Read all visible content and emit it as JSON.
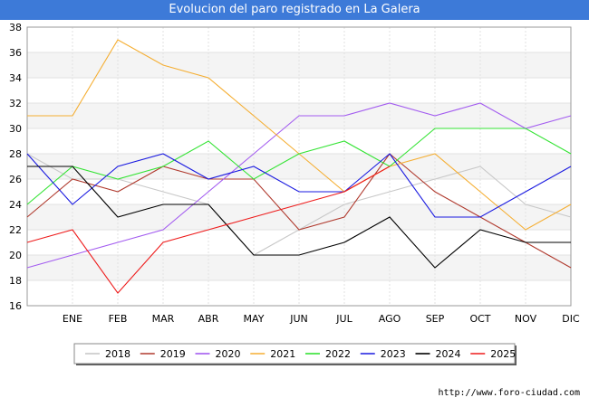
{
  "chart_data": {
    "type": "line",
    "title": "Evolucion del paro registrado en La Galera",
    "categories": [
      "",
      "ENE",
      "FEB",
      "MAR",
      "ABR",
      "MAY",
      "JUN",
      "JUL",
      "AGO",
      "SEP",
      "OCT",
      "NOV",
      "DIC"
    ],
    "ylim": [
      16,
      38
    ],
    "yticks": [
      16,
      18,
      20,
      22,
      24,
      26,
      28,
      30,
      32,
      34,
      36,
      38
    ],
    "grid": true,
    "legend_position": "bottom",
    "series": [
      {
        "name": "2018",
        "color": "#c8c8c8",
        "values": [
          28,
          26,
          26,
          25,
          24,
          20,
          22,
          24,
          25,
          26,
          27,
          24,
          23
        ]
      },
      {
        "name": "2019",
        "color": "#b03a2e",
        "values": [
          23,
          26,
          25,
          27,
          26,
          26,
          22,
          23,
          28,
          25,
          23,
          21,
          19
        ]
      },
      {
        "name": "2020",
        "color": "#a35cf0",
        "values": [
          19,
          20,
          21,
          22,
          25,
          28,
          31,
          31,
          32,
          31,
          32,
          30,
          31
        ]
      },
      {
        "name": "2021",
        "color": "#f5ae32",
        "values": [
          31,
          31,
          37,
          35,
          34,
          31,
          28,
          25,
          27,
          28,
          25,
          22,
          24
        ]
      },
      {
        "name": "2022",
        "color": "#33e333",
        "values": [
          24,
          27,
          26,
          27,
          29,
          26,
          28,
          29,
          27,
          30,
          30,
          30,
          28
        ]
      },
      {
        "name": "2023",
        "color": "#1a1ae0",
        "values": [
          28,
          24,
          27,
          28,
          26,
          27,
          25,
          25,
          28,
          23,
          23,
          25,
          27
        ]
      },
      {
        "name": "2024",
        "color": "#000000",
        "values": [
          27,
          27,
          23,
          24,
          24,
          20,
          20,
          21,
          23,
          19,
          22,
          21,
          21
        ]
      },
      {
        "name": "2025",
        "color": "#ee1c1c",
        "values": [
          21,
          22,
          17,
          21,
          22,
          23,
          24,
          25,
          27,
          null,
          null,
          null,
          null
        ]
      }
    ]
  },
  "source": "http://www.foro-ciudad.com"
}
